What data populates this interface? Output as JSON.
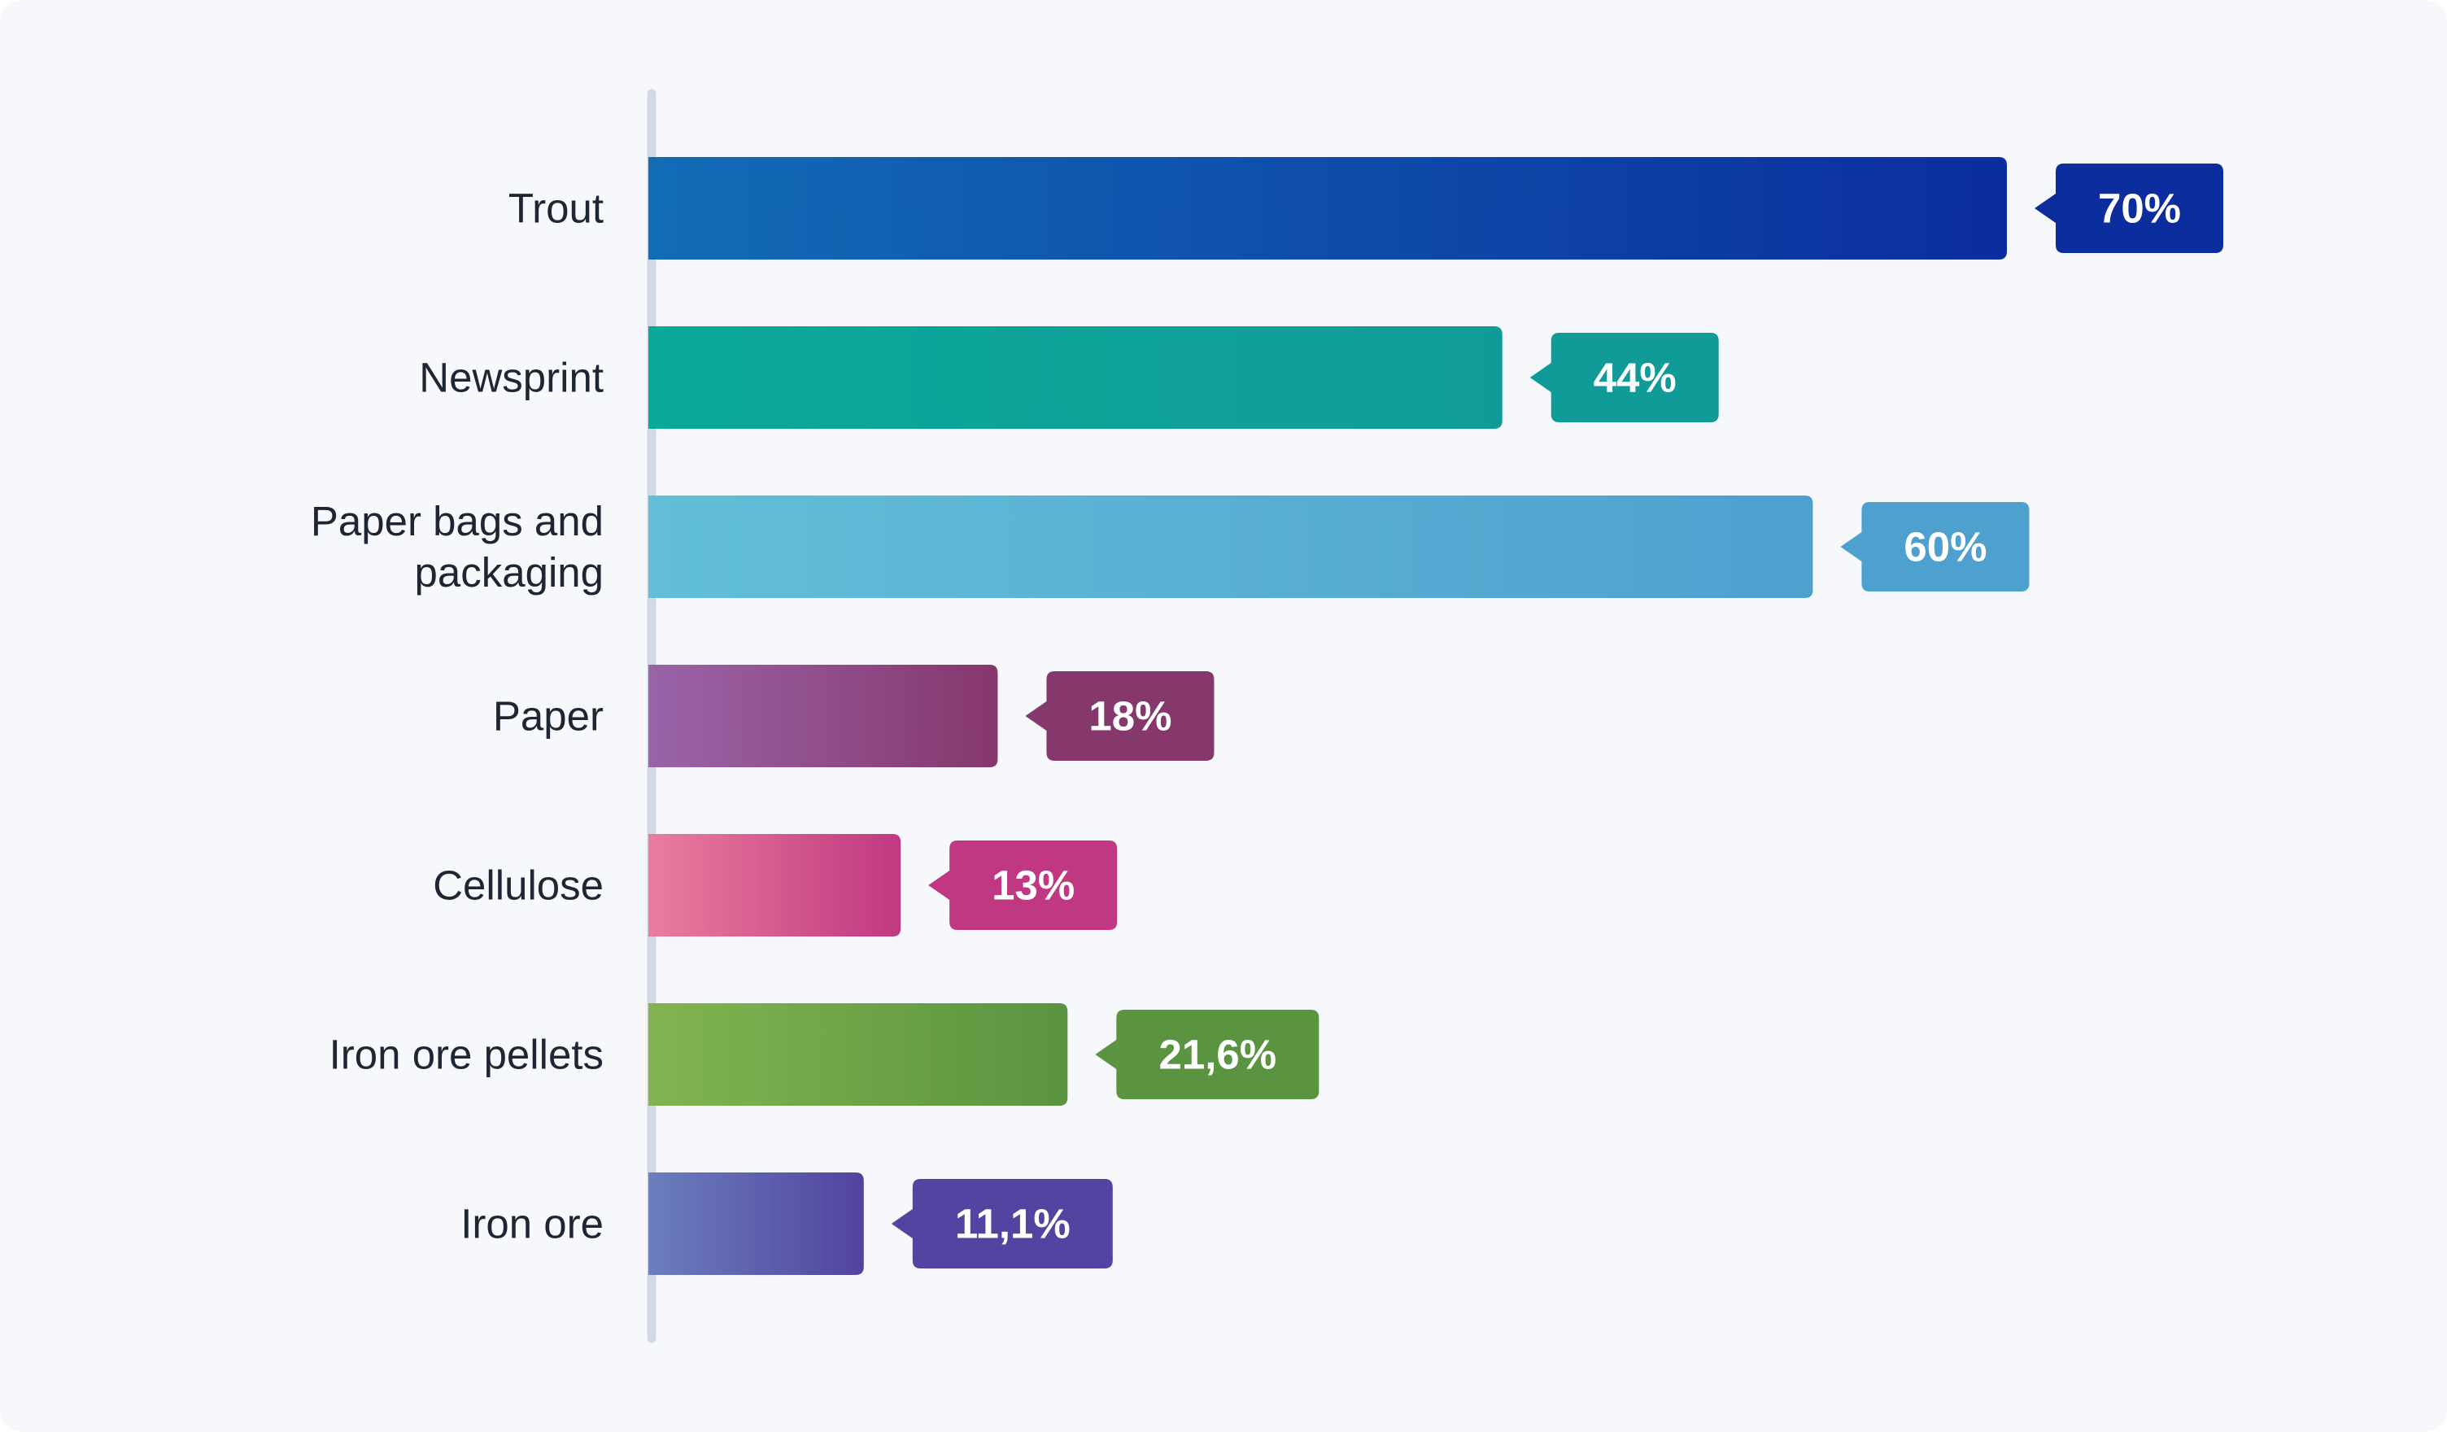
{
  "chart_data": {
    "type": "bar",
    "orientation": "horizontal",
    "categories": [
      "Trout",
      "Newsprint",
      "Paper bags and packaging",
      "Paper",
      "Cellulose",
      "Iron ore pellets",
      "Iron ore"
    ],
    "category_label_lines": [
      [
        "Trout"
      ],
      [
        "Newsprint"
      ],
      [
        "Paper bags and",
        "packaging"
      ],
      [
        "Paper"
      ],
      [
        "Cellulose"
      ],
      [
        "Iron ore pellets"
      ],
      [
        "Iron ore"
      ]
    ],
    "values": [
      70,
      44,
      60,
      18,
      13,
      21.6,
      11.1
    ],
    "value_labels": [
      "70%",
      "44%",
      "60%",
      "18%",
      "13%",
      "21,6%",
      "11,1%"
    ],
    "unit": "%",
    "xlim": [
      0,
      70
    ],
    "title": "",
    "xlabel": "",
    "ylabel": "",
    "grid": false,
    "legend": "none",
    "colors": [
      {
        "from": "#126cb6",
        "to": "#0b2d9e"
      },
      {
        "from": "#0aa99a",
        "to": "#119b98"
      },
      {
        "from": "#62bfd7",
        "to": "#4ea0cf"
      },
      {
        "from": "#9a64a9",
        "to": "#86376c"
      },
      {
        "from": "#e97d9e",
        "to": "#c03881"
      },
      {
        "from": "#82b450",
        "to": "#5a9440"
      },
      {
        "from": "#6b7ebd",
        "to": "#5244a0"
      }
    ],
    "axis_color": "#d3d9e3"
  }
}
